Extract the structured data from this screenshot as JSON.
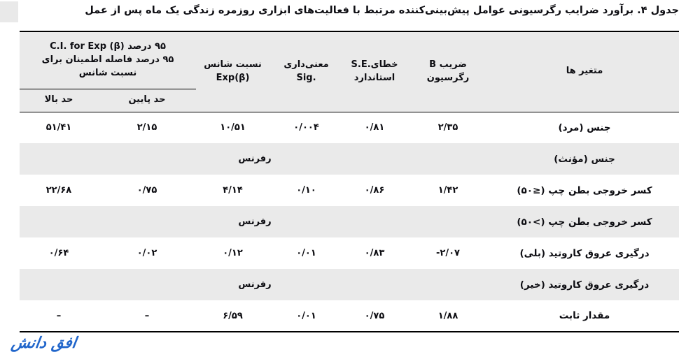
{
  "page": {
    "title": "جدول ۴. برآورد ضرایب رگرسیونی عوامل پیش‌بینی‌کننده مرتبط با فعالیت‌های ابزاری روزمره زندگی یک ماه پس از عمل",
    "watermark": "افق دانش",
    "colors": {
      "header_bg": "#eaeaea",
      "stripe_bg": "#eaeaea",
      "rule": "#000000",
      "text": "#0d0d12",
      "logo_blue": "#2166cb"
    }
  },
  "table": {
    "headers": {
      "variables": "متغیر ها",
      "b_fa": "ضریب",
      "b_latin": "B",
      "b_line2": "رگرسیون",
      "se_fa": "خطای",
      "se_latin": "S.E.",
      "se_line2": "استاندارد",
      "sig_fa": "معنی‌داری",
      "sig_latin": "Sig.",
      "exp_fa": "نسبت شانس",
      "exp_latin": "Exp(β)",
      "ci_line1_fa": "۹۵ درصد",
      "ci_line1_latin": "C.I. for Exp (β)",
      "ci_line2": "۹۵ درصد فاصله اطمینان برای",
      "ci_line3": "نسبت شانس",
      "ci_lower": "حد پایین",
      "ci_upper": "حد بالا"
    },
    "rows": [
      {
        "type": "data",
        "variable": "جنس (مرد)",
        "b": "۲/۳۵",
        "se": "۰/۸۱",
        "sig": "۰/۰۰۴",
        "exp": "۱۰/۵۱",
        "lower": "۲/۱۵",
        "upper": "۵۱/۴۱"
      },
      {
        "type": "ref",
        "variable": "جنس (مؤنث)",
        "ref": "رفرنس"
      },
      {
        "type": "data",
        "variable": "کسر خروجی بطن چپ",
        "variable_suffix": "(۵۰≥)",
        "b": "۱/۴۲",
        "se": "۰/۸۶",
        "sig": "۰/۱۰",
        "exp": "۴/۱۴",
        "lower": "۰/۷۵",
        "upper": "۲۲/۶۸"
      },
      {
        "type": "ref",
        "variable": "کسر خروجی بطن چپ",
        "variable_suffix": "(۵۰<)",
        "ref": "رفرنس"
      },
      {
        "type": "data",
        "variable": "درگیری عروق کاروتید (بلی)",
        "b": "-۲/۰۷",
        "se": "۰/۸۳",
        "sig": "۰/۰۱",
        "exp": "۰/۱۲",
        "lower": "۰/۰۲",
        "upper": "۰/۶۴"
      },
      {
        "type": "ref",
        "variable": "درگیری عروق کاروتید (خیر)",
        "ref": "رفرنس"
      },
      {
        "type": "data",
        "variable": "مقدار ثابت",
        "b": "۱/۸۸",
        "se": "۰/۷۵",
        "sig": "۰/۰۱",
        "exp": "۶/۵۹",
        "lower": "–",
        "upper": "–"
      }
    ]
  }
}
